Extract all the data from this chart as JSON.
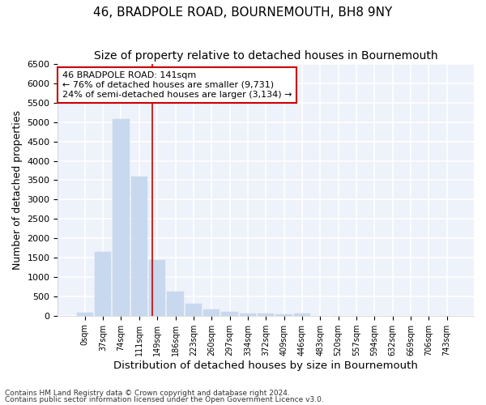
{
  "title": "46, BRADPOLE ROAD, BOURNEMOUTH, BH8 9NY",
  "subtitle": "Size of property relative to detached houses in Bournemouth",
  "xlabel": "Distribution of detached houses by size in Bournemouth",
  "ylabel": "Number of detached properties",
  "footnote1": "Contains HM Land Registry data © Crown copyright and database right 2024.",
  "footnote2": "Contains public sector information licensed under the Open Government Licence v3.0.",
  "bar_labels": [
    "0sqm",
    "37sqm",
    "74sqm",
    "111sqm",
    "149sqm",
    "186sqm",
    "223sqm",
    "260sqm",
    "297sqm",
    "334sqm",
    "372sqm",
    "409sqm",
    "446sqm",
    "483sqm",
    "520sqm",
    "557sqm",
    "594sqm",
    "632sqm",
    "669sqm",
    "706sqm",
    "743sqm"
  ],
  "bar_heights": [
    75,
    1650,
    5075,
    3600,
    1430,
    620,
    310,
    155,
    100,
    65,
    50,
    30,
    60,
    0,
    0,
    0,
    0,
    0,
    0,
    0,
    0
  ],
  "bar_color": "#c8d8ee",
  "bar_edge_color": "#c8d8ee",
  "vline_x": 3.73,
  "vline_color": "#cc0000",
  "annotation_text": "46 BRADPOLE ROAD: 141sqm\n← 76% of detached houses are smaller (9,731)\n24% of semi-detached houses are larger (3,134) →",
  "annotation_box_color": "white",
  "annotation_box_edge": "#cc0000",
  "ylim": [
    0,
    6500
  ],
  "yticks": [
    0,
    500,
    1000,
    1500,
    2000,
    2500,
    3000,
    3500,
    4000,
    4500,
    5000,
    5500,
    6000,
    6500
  ],
  "bg_color": "#eef2fa",
  "grid_color": "white",
  "title_fontsize": 11,
  "subtitle_fontsize": 10,
  "xlabel_fontsize": 9.5,
  "ylabel_fontsize": 9
}
